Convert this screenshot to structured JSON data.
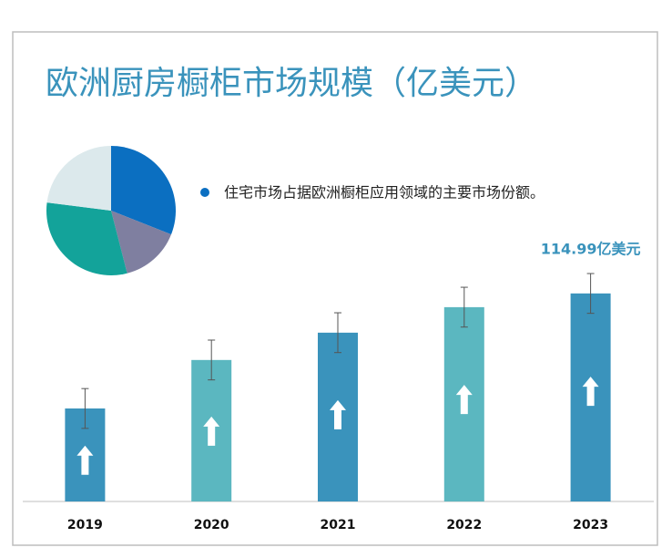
{
  "title": "欧洲厨房橱柜市场规模（亿美元）",
  "chart_data": [
    {
      "type": "pie",
      "values": [
        31,
        15,
        31,
        23
      ],
      "colors": [
        "#0b6fc1",
        "#7f7fa0",
        "#13a39a",
        "#dce9ec"
      ],
      "annotation": "住宅市场占据欧洲橱柜应用领域的主要市场份额。",
      "annotation_color": "#0b6fc1"
    },
    {
      "type": "bar",
      "categories": [
        "2019",
        "2020",
        "2021",
        "2022",
        "2023"
      ],
      "values": [
        51.4,
        78.2,
        93.3,
        107.4,
        114.99
      ],
      "errors": [
        11,
        11,
        11,
        11,
        11
      ],
      "value_labels": [
        null,
        null,
        null,
        null,
        "114.99亿美元"
      ],
      "colors": [
        "#3a93bc",
        "#5bb7c0",
        "#3a93bc",
        "#5bb7c0",
        "#3a93bc"
      ]
    }
  ]
}
